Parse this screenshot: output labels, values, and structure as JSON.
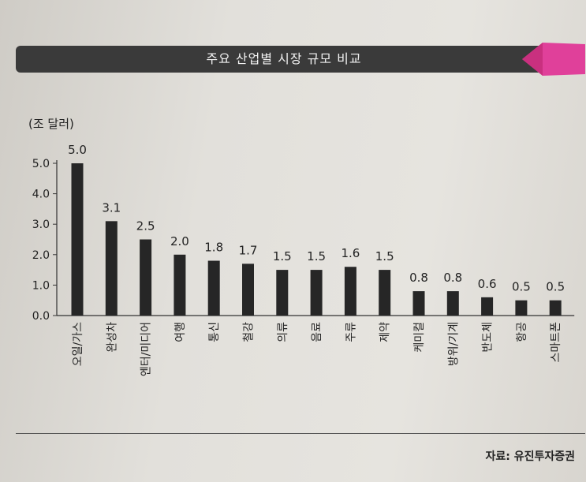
{
  "header": {
    "title": "주요 산업별 시장 규모 비교"
  },
  "unit_label": "(조 달러)",
  "source": "자료: 유진투자증권",
  "colors": {
    "bar": "#262626",
    "title_bar": "#3a3a3a",
    "tab": "#e0409a"
  },
  "chart_data": {
    "type": "bar",
    "title": "주요 산업별 시장 규모 비교",
    "ylabel": "(조 달러)",
    "xlabel": "",
    "ylim": [
      0,
      5
    ],
    "yticks": [
      "0.0",
      "1.0",
      "2.0",
      "3.0",
      "4.0",
      "5.0"
    ],
    "grid": false,
    "categories": [
      "오일/가스",
      "완성차",
      "엔터/미디어",
      "여행",
      "통신",
      "철강",
      "의류",
      "음료",
      "주류",
      "제약",
      "케미컬",
      "방위/기계",
      "반도체",
      "항공",
      "스마트폰"
    ],
    "values": [
      5.0,
      3.1,
      2.5,
      2.0,
      1.8,
      1.7,
      1.5,
      1.5,
      1.6,
      1.5,
      0.8,
      0.8,
      0.6,
      0.5,
      0.5
    ],
    "value_labels": [
      "5.0",
      "3.1",
      "2.5",
      "2.0",
      "1.8",
      "1.7",
      "1.5",
      "1.5",
      "1.6",
      "1.5",
      "0.8",
      "0.8",
      "0.6",
      "0.5",
      "0.5"
    ]
  }
}
